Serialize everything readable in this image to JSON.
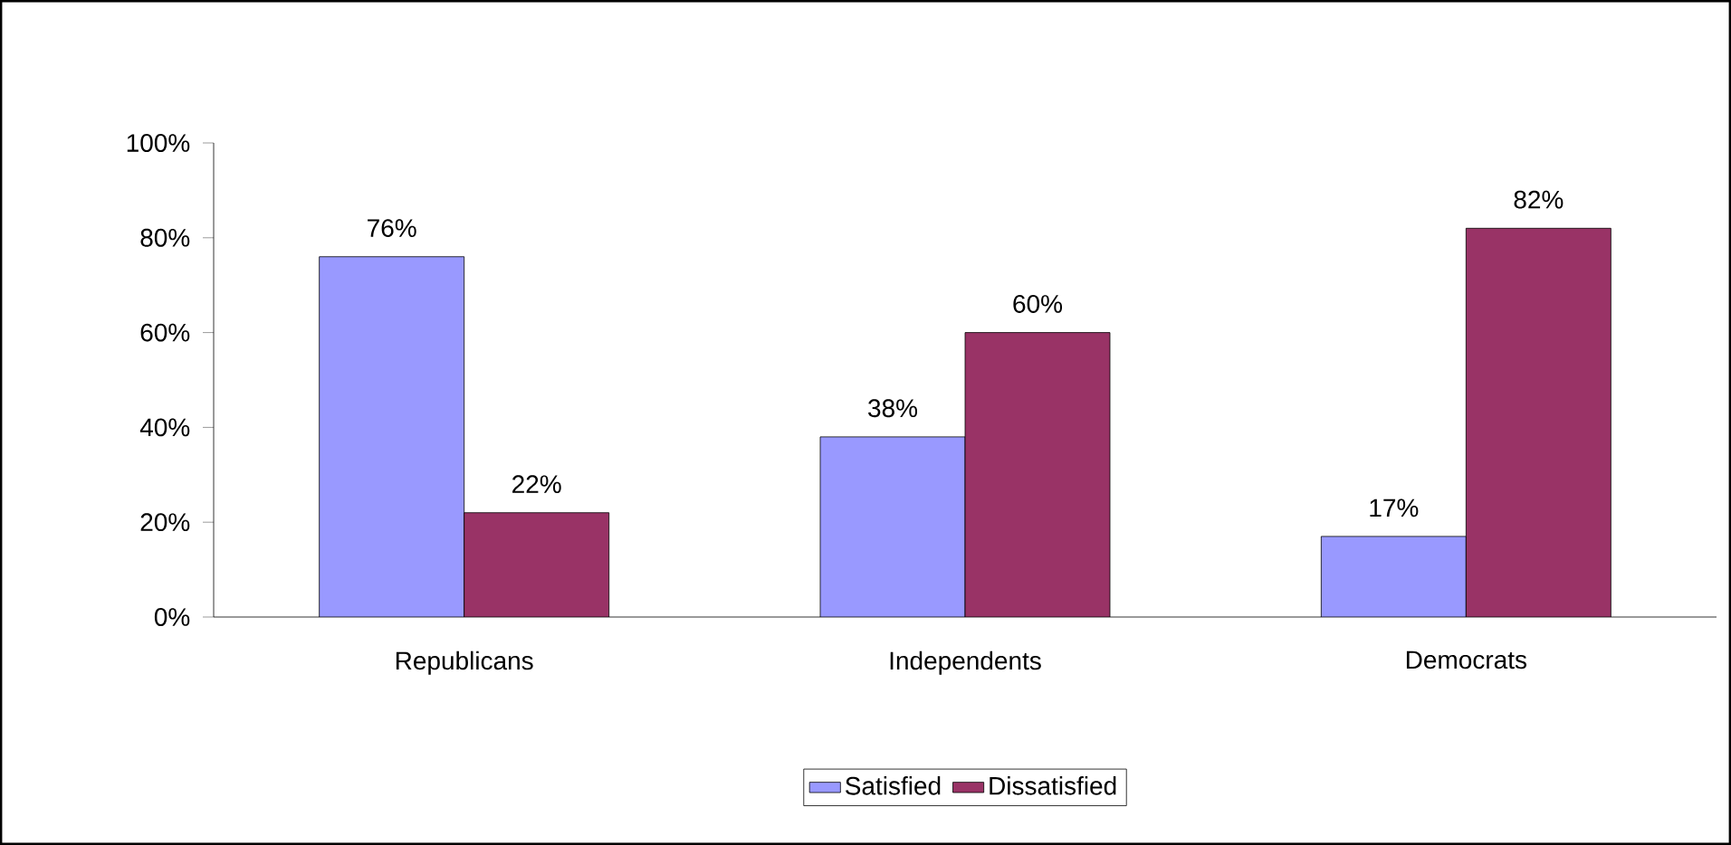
{
  "chart_data": {
    "type": "bar",
    "categories": [
      "Republicans",
      "Independents",
      "Democrats"
    ],
    "series": [
      {
        "name": "Satisfied",
        "color": "#9999ff",
        "values": [
          76,
          38,
          17
        ],
        "value_labels": [
          "76%",
          "38%",
          "17%"
        ]
      },
      {
        "name": "Dissatisfied",
        "color": "#993366",
        "values": [
          22,
          60,
          82
        ],
        "value_labels": [
          "22%",
          "60%",
          "82%"
        ]
      }
    ],
    "ylim": [
      0,
      100
    ],
    "yticks": [
      {
        "value": 0,
        "label": "0%"
      },
      {
        "value": 20,
        "label": "20%"
      },
      {
        "value": 40,
        "label": "40%"
      },
      {
        "value": 60,
        "label": "60%"
      },
      {
        "value": 80,
        "label": "80%"
      },
      {
        "value": 100,
        "label": "100%"
      }
    ],
    "legend": "bottom",
    "grid": false
  }
}
